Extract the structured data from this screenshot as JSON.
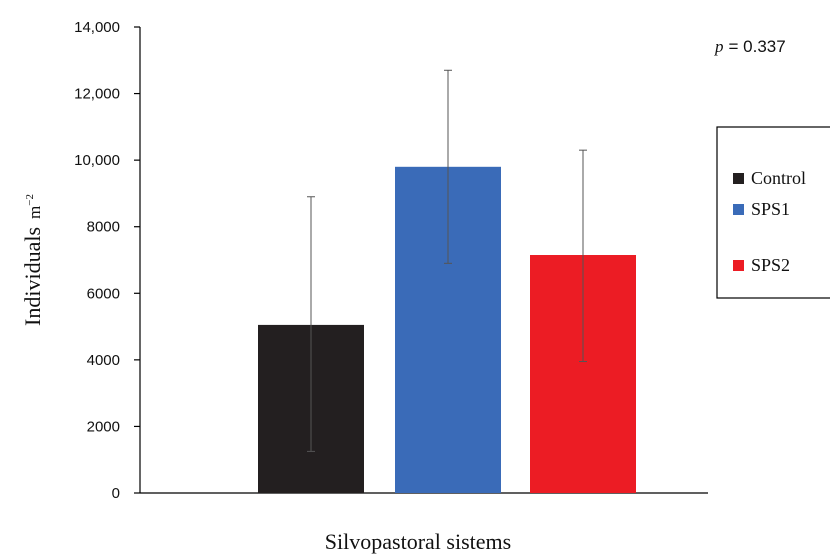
{
  "chart_data": {
    "type": "bar",
    "ylabel": "Individuals",
    "ylabel_unit": "m",
    "ylabel_unit_exp": "−2",
    "xlabel": "Silvopastoral sistems",
    "annotation_p_label": "p",
    "annotation_p_value": "= 0.337",
    "ylim": [
      0,
      14000
    ],
    "yticks": [
      0,
      2000,
      4000,
      6000,
      8000,
      10000,
      12000,
      14000
    ],
    "ytick_labels": [
      "0",
      "2000",
      "4000",
      "6000",
      "8000",
      "10,000",
      "12,000",
      "14,000"
    ],
    "grid": false,
    "legend_position": "right",
    "categories": [
      "Control",
      "SPS1",
      "SPS2"
    ],
    "values": [
      5050,
      9800,
      7150
    ],
    "error_low": [
      1250,
      6900,
      3950
    ],
    "error_high": [
      8900,
      12700,
      10300
    ],
    "colors": [
      "#231f20",
      "#3a6bb8",
      "#ec1c24"
    ]
  }
}
